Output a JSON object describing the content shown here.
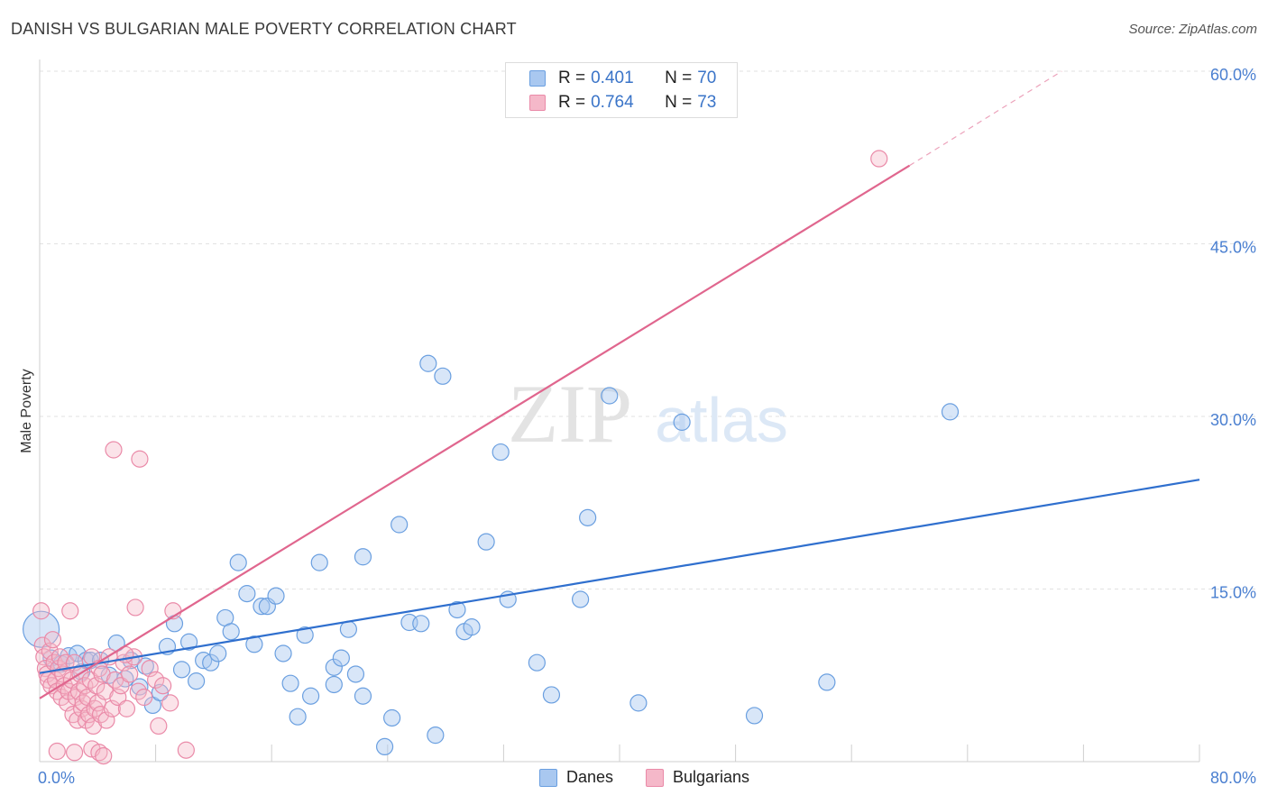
{
  "header": {
    "title": "DANISH VS BULGARIAN MALE POVERTY CORRELATION CHART",
    "source": "Source: ZipAtlas.com"
  },
  "watermark": {
    "zip": "ZIP",
    "atlas": "atlas"
  },
  "legend": {
    "rows": [
      {
        "r_label": "R =",
        "r_value": "0.401",
        "n_label": "N =",
        "n_value": "70",
        "color": "#a9c8f0"
      },
      {
        "r_label": "R =",
        "r_value": "0.764",
        "n_label": "N =",
        "n_value": "73",
        "color": "#f5b8c9"
      }
    ]
  },
  "bottom_legend": {
    "danes": "Danes",
    "bulgarians": "Bulgarians"
  },
  "colors": {
    "danes_fill": "#a9c8f0",
    "danes_stroke": "#6a9fe0",
    "danes_line": "#2f6fce",
    "bulg_fill": "#f5b8c9",
    "bulg_stroke": "#ea8aa8",
    "bulg_line": "#e0668e",
    "tick_text": "#4a7fd0",
    "grid": "#e2e2e2"
  },
  "chart_data": {
    "type": "scatter",
    "title": "DANISH VS BULGARIAN MALE POVERTY CORRELATION CHART",
    "xlabel": "",
    "ylabel": "Male Poverty",
    "xlim": [
      0,
      80
    ],
    "ylim": [
      0,
      60
    ],
    "x_tick_labels": [
      "0.0%",
      "80.0%"
    ],
    "y_ticks": [
      15,
      30,
      45,
      60
    ],
    "y_tick_labels": [
      "15.0%",
      "30.0%",
      "45.0%",
      "60.0%"
    ],
    "grid": true,
    "legend_position": "top-center",
    "series": [
      {
        "name": "Danes",
        "trend": {
          "x0": 0,
          "y0": 7.7,
          "x1": 80,
          "y1": 24.5
        },
        "points": [
          [
            0.1,
            11.5
          ],
          [
            0.8,
            9.0
          ],
          [
            1.5,
            8.5
          ],
          [
            2.0,
            9.2
          ],
          [
            2.6,
            9.4
          ],
          [
            2.9,
            7.8
          ],
          [
            3.2,
            8.8
          ],
          [
            3.5,
            8.8
          ],
          [
            4.2,
            8.8
          ],
          [
            4.8,
            7.5
          ],
          [
            5.3,
            10.3
          ],
          [
            5.9,
            7.2
          ],
          [
            6.3,
            8.8
          ],
          [
            6.9,
            6.5
          ],
          [
            7.3,
            8.3
          ],
          [
            7.8,
            4.9
          ],
          [
            8.3,
            6.0
          ],
          [
            8.8,
            10.0
          ],
          [
            9.3,
            12.0
          ],
          [
            9.8,
            8.0
          ],
          [
            10.3,
            10.4
          ],
          [
            10.8,
            7.0
          ],
          [
            11.3,
            8.8
          ],
          [
            11.8,
            8.6
          ],
          [
            12.3,
            9.4
          ],
          [
            12.8,
            12.5
          ],
          [
            13.2,
            11.3
          ],
          [
            13.7,
            17.3
          ],
          [
            14.3,
            14.6
          ],
          [
            14.8,
            10.2
          ],
          [
            15.3,
            13.5
          ],
          [
            15.7,
            13.5
          ],
          [
            16.3,
            14.4
          ],
          [
            16.8,
            9.4
          ],
          [
            17.3,
            6.8
          ],
          [
            17.8,
            3.9
          ],
          [
            18.3,
            11.0
          ],
          [
            18.7,
            5.7
          ],
          [
            19.3,
            17.3
          ],
          [
            20.3,
            6.7
          ],
          [
            20.3,
            8.2
          ],
          [
            20.8,
            9.0
          ],
          [
            21.3,
            11.5
          ],
          [
            21.8,
            7.6
          ],
          [
            22.3,
            17.8
          ],
          [
            22.3,
            5.7
          ],
          [
            23.8,
            1.3
          ],
          [
            24.3,
            3.8
          ],
          [
            24.8,
            20.6
          ],
          [
            25.5,
            12.1
          ],
          [
            26.3,
            12.0
          ],
          [
            26.8,
            34.6
          ],
          [
            27.3,
            2.3
          ],
          [
            27.8,
            33.5
          ],
          [
            28.8,
            13.2
          ],
          [
            29.3,
            11.3
          ],
          [
            29.8,
            11.7
          ],
          [
            30.8,
            19.1
          ],
          [
            31.8,
            26.9
          ],
          [
            32.3,
            14.1
          ],
          [
            34.3,
            8.6
          ],
          [
            35.3,
            5.8
          ],
          [
            37.3,
            14.1
          ],
          [
            37.8,
            21.2
          ],
          [
            39.3,
            31.8
          ],
          [
            41.3,
            5.1
          ],
          [
            44.3,
            29.5
          ],
          [
            49.3,
            4.0
          ],
          [
            54.3,
            6.9
          ],
          [
            62.8,
            30.4
          ]
        ]
      },
      {
        "name": "Bulgarians",
        "trend": {
          "x0": 0,
          "y0": 5.5,
          "x1": 60.0,
          "y1": 51.8,
          "dashed_x1": 70.5,
          "dashed_y1": 60.0
        },
        "points": [
          [
            0.1,
            13.1
          ],
          [
            0.2,
            10.1
          ],
          [
            0.3,
            9.1
          ],
          [
            0.4,
            8.1
          ],
          [
            0.5,
            7.6
          ],
          [
            0.6,
            7.1
          ],
          [
            0.7,
            9.6
          ],
          [
            0.8,
            6.6
          ],
          [
            0.9,
            10.6
          ],
          [
            1.0,
            8.6
          ],
          [
            1.1,
            7.1
          ],
          [
            1.2,
            6.1
          ],
          [
            1.3,
            8.1
          ],
          [
            1.4,
            9.1
          ],
          [
            1.5,
            5.6
          ],
          [
            1.6,
            7.6
          ],
          [
            1.7,
            6.6
          ],
          [
            1.8,
            8.6
          ],
          [
            1.9,
            5.1
          ],
          [
            2.0,
            6.1
          ],
          [
            2.1,
            13.1
          ],
          [
            2.2,
            7.1
          ],
          [
            2.3,
            4.1
          ],
          [
            2.4,
            8.6
          ],
          [
            2.5,
            5.6
          ],
          [
            2.6,
            3.6
          ],
          [
            2.7,
            6.1
          ],
          [
            2.8,
            7.6
          ],
          [
            2.9,
            4.6
          ],
          [
            3.0,
            5.1
          ],
          [
            3.1,
            6.6
          ],
          [
            3.2,
            3.6
          ],
          [
            3.3,
            5.6
          ],
          [
            3.4,
            4.1
          ],
          [
            3.5,
            7.1
          ],
          [
            3.6,
            9.1
          ],
          [
            3.7,
            3.1
          ],
          [
            3.8,
            4.6
          ],
          [
            3.9,
            6.6
          ],
          [
            4.0,
            5.1
          ],
          [
            4.1,
            8.1
          ],
          [
            4.2,
            4.1
          ],
          [
            4.3,
            7.6
          ],
          [
            4.5,
            6.1
          ],
          [
            4.6,
            3.6
          ],
          [
            4.8,
            9.1
          ],
          [
            5.0,
            4.6
          ],
          [
            5.2,
            7.1
          ],
          [
            5.4,
            5.6
          ],
          [
            5.6,
            6.6
          ],
          [
            5.8,
            8.6
          ],
          [
            6.0,
            4.6
          ],
          [
            6.2,
            7.6
          ],
          [
            6.5,
            9.1
          ],
          [
            6.8,
            6.1
          ],
          [
            7.2,
            5.6
          ],
          [
            7.6,
            8.1
          ],
          [
            8.0,
            7.1
          ],
          [
            8.5,
            6.6
          ],
          [
            9.0,
            5.1
          ],
          [
            5.1,
            27.1
          ],
          [
            6.9,
            26.3
          ],
          [
            9.2,
            13.1
          ],
          [
            10.1,
            1.0
          ],
          [
            3.6,
            1.1
          ],
          [
            4.1,
            0.8
          ],
          [
            4.4,
            0.5
          ],
          [
            1.2,
            0.9
          ],
          [
            2.4,
            0.8
          ],
          [
            5.9,
            9.3
          ],
          [
            6.6,
            13.4
          ],
          [
            8.2,
            3.1
          ],
          [
            57.9,
            52.4
          ]
        ]
      }
    ]
  }
}
